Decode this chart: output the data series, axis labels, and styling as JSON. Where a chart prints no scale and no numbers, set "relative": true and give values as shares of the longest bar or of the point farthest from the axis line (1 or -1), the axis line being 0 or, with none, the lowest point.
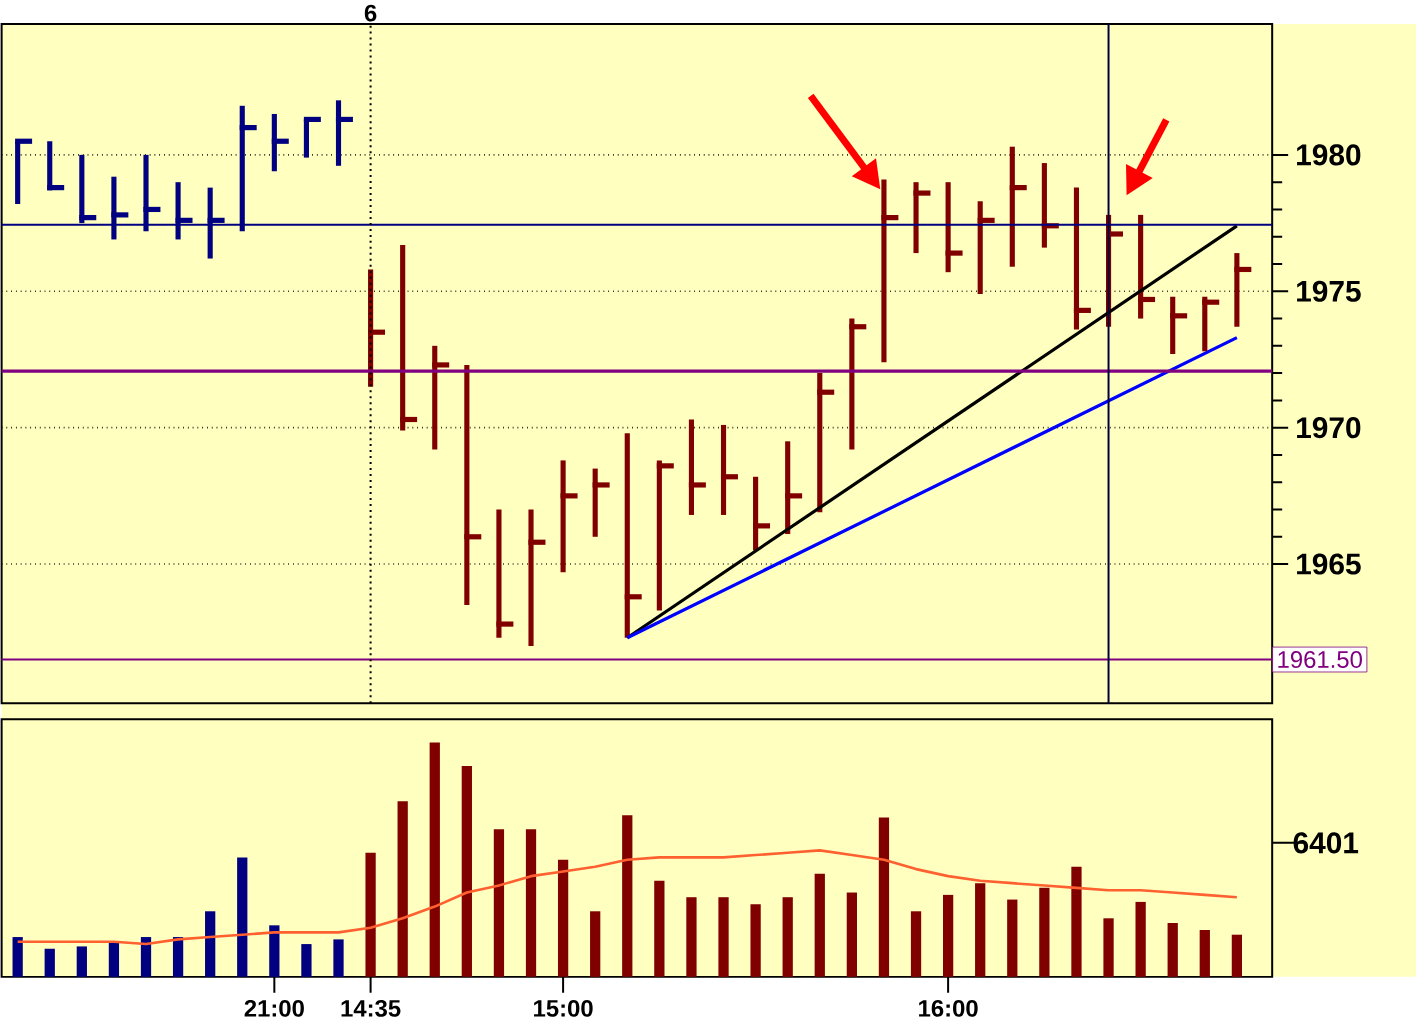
{
  "chart_data": [
    {
      "type": "bar",
      "categories": [
        null,
        null,
        null,
        null,
        null,
        null,
        null,
        null,
        "21:00",
        null,
        null,
        "14:35",
        null,
        null,
        null,
        null,
        null,
        "15:00",
        null,
        null,
        null,
        null,
        null,
        null,
        null,
        null,
        null,
        null,
        null,
        "16:00",
        null,
        null,
        null,
        null,
        null,
        null,
        null,
        null,
        null
      ],
      "series": [
        {
          "type": "bar",
          "colors": [
            "#000080",
            "#000080",
            "#000080",
            "#000080",
            "#000080",
            "#000080",
            "#000080",
            "#000080",
            "#000080",
            "#000080",
            "#000080",
            "#800000",
            "#800000",
            "#800000",
            "#800000",
            "#800000",
            "#800000",
            "#800000",
            "#800000",
            "#800000",
            "#800000",
            "#800000",
            "#800000",
            "#800000",
            "#800000",
            "#800000",
            "#800000",
            "#800000",
            "#800000",
            "#800000",
            "#800000",
            "#800000",
            "#800000",
            "#800000",
            "#800000",
            "#800000",
            "#800000",
            "#800000",
            "#800000"
          ],
          "base": [
            1978.2,
            1978.7,
            1977.5,
            1976.9,
            1977.2,
            1976.9,
            1976.2,
            1977.2,
            1979.4,
            1979.9,
            1979.6,
            1971.5,
            1969.9,
            1969.2,
            1963.5,
            1962.3,
            1962.0,
            1964.7,
            1966.0,
            1962.3,
            1963.3,
            1966.8,
            1966.8,
            1965.5,
            1966.1,
            1966.9,
            1969.2,
            1972.4,
            1976.4,
            1975.7,
            1974.9,
            1975.9,
            1976.6,
            1973.6,
            1973.7,
            1974.0,
            1972.7,
            1972.8,
            1973.7
          ],
          "values": [
            2.3,
            1.8,
            2.5,
            2.3,
            2.8,
            2.1,
            2.6,
            4.6,
            2.1,
            1.4,
            2.4,
            4.3,
            6.8,
            3.8,
            8.8,
            4.7,
            5.0,
            4.1,
            2.5,
            7.5,
            5.5,
            3.5,
            3.3,
            2.7,
            3.4,
            5.1,
            4.8,
            6.7,
            2.6,
            3.3,
            3.4,
            4.4,
            3.1,
            5.2,
            4.1,
            3.8,
            2.1,
            2.0,
            2.7
          ]
        },
        {
          "type": "scatter",
          "colors": [
            "#000080",
            "#000080",
            "#000080",
            "#000080",
            "#000080",
            "#000080",
            "#000080",
            "#000080",
            "#000080",
            "#000080",
            "#000080",
            "#800000",
            "#800000",
            "#800000",
            "#800000",
            "#800000",
            "#800000",
            "#800000",
            "#800000",
            "#800000",
            "#800000",
            "#800000",
            "#800000",
            "#800000",
            "#800000",
            "#800000",
            "#800000",
            "#800000",
            "#800000",
            "#800000",
            "#800000",
            "#800000",
            "#800000",
            "#800000",
            "#800000",
            "#800000",
            "#800000",
            "#800000",
            "#800000"
          ],
          "values": [
            1980.5,
            1978.8,
            1977.7,
            1977.8,
            1978.0,
            1977.6,
            1977.6,
            1981.0,
            1980.5,
            1981.3,
            1981.3,
            1973.5,
            1970.3,
            1972.3,
            1966.0,
            1962.8,
            1965.8,
            1967.5,
            1967.9,
            1963.8,
            1968.6,
            1967.9,
            1968.2,
            1966.4,
            1967.5,
            1971.3,
            1973.7,
            1977.7,
            1978.6,
            1976.4,
            1977.6,
            1978.8,
            1977.4,
            1974.3,
            1977.1,
            1974.7,
            1974.1,
            1974.6,
            1975.8
          ]
        },
        {
          "type": "line",
          "color": "#000000",
          "values": [
            null,
            null,
            null,
            null,
            null,
            null,
            null,
            null,
            null,
            null,
            null,
            null,
            null,
            null,
            null,
            null,
            null,
            null,
            null,
            1962.3,
            null,
            null,
            null,
            null,
            null,
            null,
            null,
            null,
            null,
            null,
            null,
            null,
            null,
            null,
            null,
            null,
            null,
            null,
            1977.4
          ]
        },
        {
          "type": "line",
          "color": "#0000ff",
          "values": [
            null,
            null,
            null,
            null,
            null,
            null,
            null,
            null,
            null,
            null,
            null,
            null,
            null,
            null,
            null,
            null,
            null,
            null,
            null,
            1962.3,
            null,
            null,
            null,
            null,
            null,
            null,
            null,
            null,
            null,
            null,
            null,
            null,
            null,
            null,
            null,
            null,
            null,
            null,
            1973.3
          ]
        }
      ],
      "ylim": [
        1959.9,
        1984.8
      ],
      "yticks": [
        1965,
        1970,
        1975,
        1980
      ],
      "grid": "y",
      "tick_labels": "y",
      "ref_lines": [
        {
          "axis": "y",
          "value": 1977.44,
          "color": "#000080"
        },
        {
          "axis": "y",
          "value": 1972.07,
          "color": "#800080"
        },
        {
          "axis": "y",
          "value": 1961.5,
          "label": "1961.50",
          "color": "#800080"
        },
        {
          "axis": "x",
          "value": "14:35",
          "label": "6",
          "color": "#000000",
          "line_style": "dotted"
        }
      ]
    },
    {
      "type": "bar",
      "relative": true,
      "categories": [
        null,
        null,
        null,
        null,
        null,
        null,
        null,
        null,
        "21:00",
        null,
        null,
        "14:35",
        null,
        null,
        null,
        null,
        null,
        "15:00",
        null,
        null,
        null,
        null,
        null,
        null,
        null,
        null,
        null,
        null,
        null,
        "16:00",
        null,
        null,
        null,
        null,
        null,
        null,
        null,
        null,
        null
      ],
      "series": [
        {
          "type": "bar",
          "colors": [
            "#000080",
            "#000080",
            "#000080",
            "#000080",
            "#000080",
            "#000080",
            "#000080",
            "#000080",
            "#000080",
            "#000080",
            "#000080",
            "#800000",
            "#800000",
            "#800000",
            "#800000",
            "#800000",
            "#800000",
            "#800000",
            "#800000",
            "#800000",
            "#800000",
            "#800000",
            "#800000",
            "#800000",
            "#800000",
            "#800000",
            "#800000",
            "#800000",
            "#800000",
            "#800000",
            "#800000",
            "#800000",
            "#800000",
            "#800000",
            "#800000",
            "#800000",
            "#800000",
            "#800000",
            "#800000"
          ],
          "values": [
            0.17,
            0.12,
            0.13,
            0.15,
            0.17,
            0.17,
            0.28,
            0.51,
            0.22,
            0.14,
            0.16,
            0.53,
            0.75,
            1,
            0.9,
            0.63,
            0.63,
            0.5,
            0.28,
            0.69,
            0.41,
            0.34,
            0.34,
            0.31,
            0.34,
            0.44,
            0.36,
            0.68,
            0.28,
            0.35,
            0.4,
            0.33,
            0.38,
            0.47,
            0.25,
            0.32,
            0.23,
            0.2,
            0.18
          ]
        },
        {
          "type": "line",
          "color": "#ff6030",
          "values": [
            0.15,
            0.15,
            0.15,
            0.15,
            0.14,
            0.16,
            0.17,
            0.18,
            0.19,
            0.19,
            0.19,
            0.21,
            0.25,
            0.3,
            0.36,
            0.39,
            0.43,
            0.45,
            0.47,
            0.5,
            0.51,
            0.51,
            0.51,
            0.52,
            0.53,
            0.54,
            0.52,
            0.5,
            0.46,
            0.43,
            0.41,
            0.4,
            0.39,
            0.38,
            0.37,
            0.37,
            0.36,
            0.35,
            0.34
          ]
        }
      ],
      "annotations": [
        "6401"
      ]
    }
  ]
}
